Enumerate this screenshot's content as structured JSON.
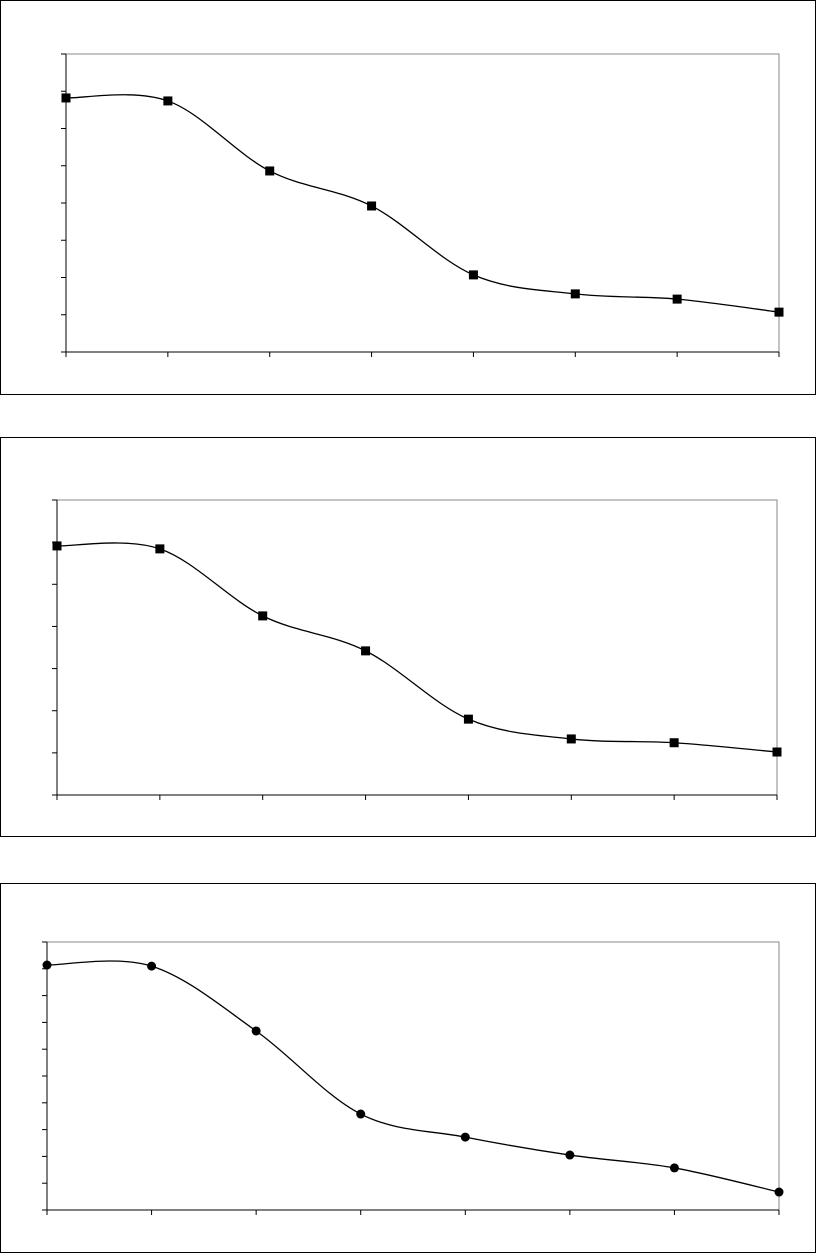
{
  "chart_data": [
    {
      "type": "line",
      "marker": "square",
      "color": "#000000",
      "x": [
        0,
        1,
        2,
        3,
        4,
        5,
        6,
        7
      ],
      "xlim": [
        0,
        7
      ],
      "xticks": [
        0,
        1,
        2,
        3,
        4,
        5,
        6,
        7
      ],
      "values": [
        6.82,
        6.74,
        4.86,
        3.92,
        2.07,
        1.56,
        1.42,
        1.07
      ],
      "ylim": [
        0,
        8
      ],
      "yticks": [
        0,
        1,
        2,
        3,
        4,
        5,
        6,
        7,
        8
      ],
      "smooth": true
    },
    {
      "type": "line",
      "marker": "square",
      "color": "#000000",
      "x": [
        0,
        1,
        2,
        3,
        4,
        5,
        6,
        7
      ],
      "xlim": [
        0,
        7
      ],
      "xticks": [
        0,
        1,
        2,
        3,
        4,
        5,
        6,
        7
      ],
      "values": [
        5.91,
        5.84,
        4.25,
        3.42,
        1.8,
        1.33,
        1.24,
        1.02
      ],
      "ylim": [
        0,
        7
      ],
      "yticks": [
        0,
        1,
        2,
        3,
        4,
        5,
        6,
        7
      ],
      "smooth": true
    },
    {
      "type": "line",
      "marker": "circle",
      "color": "#000000",
      "x": [
        0,
        1,
        2,
        3,
        4,
        5,
        6,
        7
      ],
      "xlim": [
        0,
        7
      ],
      "xticks": [
        0,
        1,
        2,
        3,
        4,
        5,
        6,
        7
      ],
      "values": [
        9.14,
        9.1,
        6.68,
        3.58,
        2.72,
        2.05,
        1.57,
        0.67
      ],
      "ylim": [
        0,
        10
      ],
      "yticks": [
        0,
        1,
        2,
        3,
        4,
        5,
        6,
        7,
        8,
        9,
        10
      ],
      "smooth": true
    }
  ]
}
